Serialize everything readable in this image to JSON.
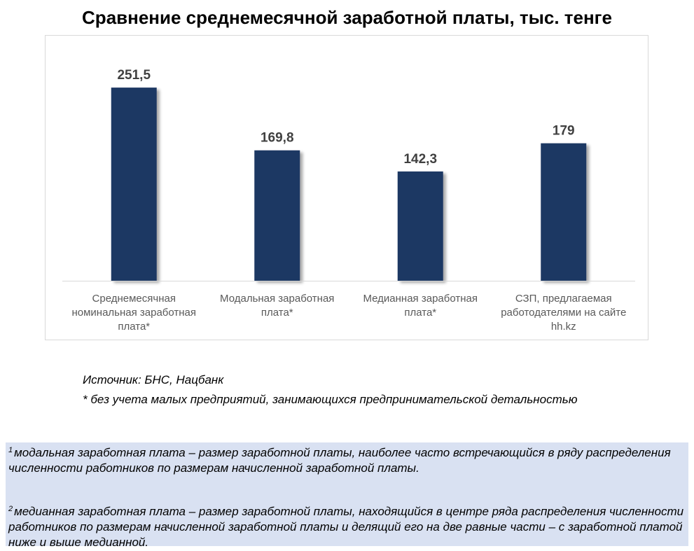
{
  "chart_data": {
    "type": "bar",
    "title": "Сравнение среднемесячной заработной платы, тыс. тенге",
    "categories": [
      [
        "Среднемесячная",
        "номинальная заработная",
        "плата*"
      ],
      [
        "Модальная заработная",
        "плата*"
      ],
      [
        "Медианная заработная",
        "плата*"
      ],
      [
        "СЗП, предлагаемая",
        "работодателями на сайте",
        "hh.kz"
      ]
    ],
    "values": [
      251.5,
      169.8,
      142.3,
      179
    ],
    "data_labels": [
      "251,5",
      "169,8",
      "142,3",
      "179"
    ],
    "ylim": [
      0,
      300
    ],
    "bar_color": "#1f3864",
    "grid": false
  },
  "notes": {
    "source": "Источник: БНС, Нацбанк",
    "asterisk": "* без учета малых предприятий, занимающихся предпринимательской детальностью"
  },
  "footnotes": [
    {
      "mark": "1",
      "text": "модальная заработная плата – размер заработной платы, наиболее часто встречающийся в ряду распределения численности работников по размерам начисленной заработной платы."
    },
    {
      "mark": "2",
      "text": "медианная заработная плата – размер заработной платы, находящийся в центре ряда распределения численности работников по размерам начисленной заработной платы и делящий его на две равные части – с заработной платой ниже и выше медианной."
    }
  ],
  "colors": {
    "footnote_background": "#d9e1f2",
    "bar": "#1f3864"
  }
}
